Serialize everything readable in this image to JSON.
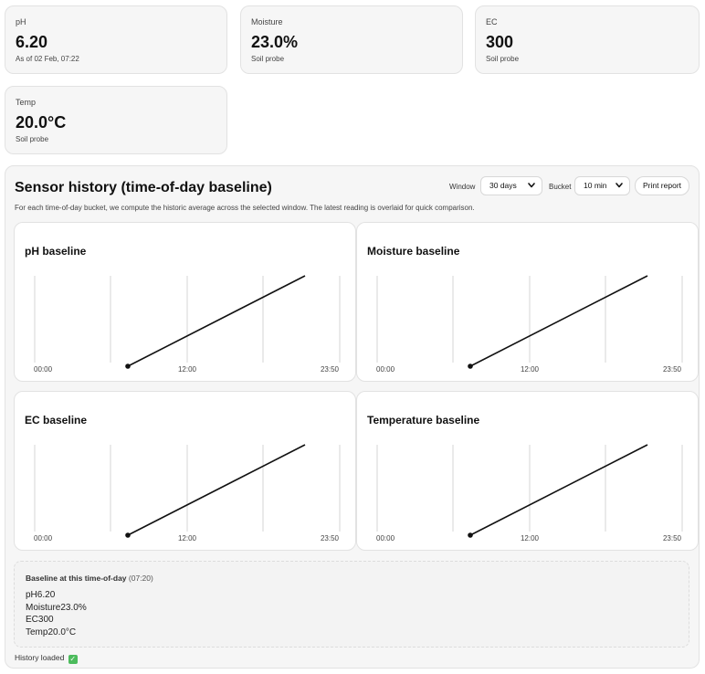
{
  "kpis": [
    {
      "label": "pH",
      "value": "6.20",
      "sub": "As of 02 Feb, 07:22"
    },
    {
      "label": "Moisture",
      "value": "23.0%",
      "sub": "Soil probe"
    },
    {
      "label": "EC",
      "value": "300",
      "sub": "Soil probe"
    },
    {
      "label": "Temp",
      "value": "20.0°C",
      "sub": "Soil probe"
    }
  ],
  "history": {
    "title": "Sensor history (time-of-day baseline)",
    "description": "For each time-of-day bucket, we compute the historic average across the selected window. The latest reading is overlaid for quick comparison.",
    "window_label": "Window",
    "window_value": "30 days",
    "bucket_label": "Bucket",
    "bucket_value": "10 min",
    "print_label": "Print report"
  },
  "chart_data": [
    {
      "type": "line",
      "title": "pH baseline",
      "x_ticks": [
        "00:00",
        "12:00",
        "23:50"
      ],
      "grid": true
    },
    {
      "type": "line",
      "title": "Moisture baseline",
      "x_ticks": [
        "00:00",
        "12:00",
        "23:50"
      ],
      "grid": true
    },
    {
      "type": "line",
      "title": "EC baseline",
      "x_ticks": [
        "00:00",
        "12:00",
        "23:50"
      ],
      "grid": true
    },
    {
      "type": "line",
      "title": "Temperature baseline",
      "x_ticks": [
        "00:00",
        "12:00",
        "23:50"
      ],
      "grid": true
    }
  ],
  "baseline": {
    "heading": "Baseline at this time-of-day",
    "time": "(07:20)",
    "items": [
      {
        "label": "pH",
        "value": "6.20"
      },
      {
        "label": "Moisture",
        "value": "23.0%"
      },
      {
        "label": "EC",
        "value": "300"
      },
      {
        "label": "Temp",
        "value": "20.0°C"
      }
    ]
  },
  "status": {
    "text": "History loaded",
    "icon": "check-icon",
    "icon_color": "#4cbb5c"
  }
}
